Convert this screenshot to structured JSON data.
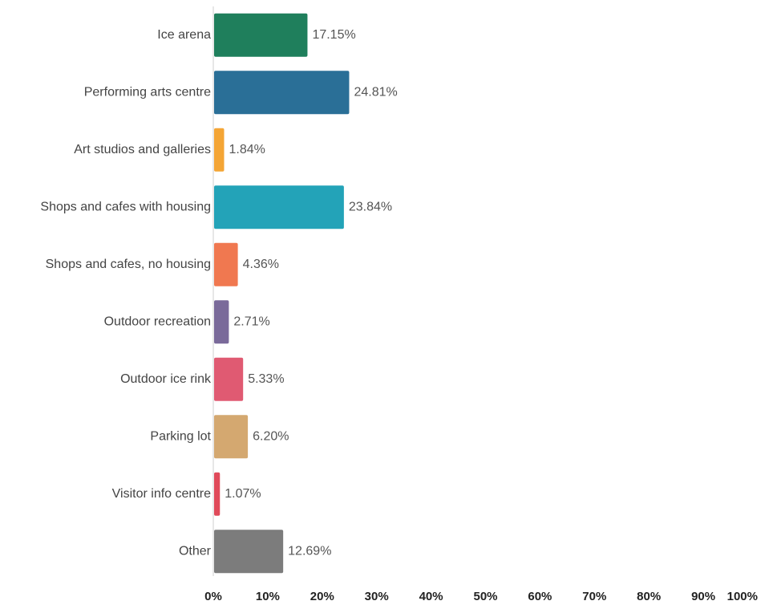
{
  "chart_data": {
    "type": "bar",
    "orientation": "horizontal",
    "categories": [
      "Ice arena",
      "Performing arts centre",
      "Art studios and galleries",
      "Shops and cafes with housing",
      "Shops and cafes, no housing",
      "Outdoor recreation",
      "Outdoor ice rink",
      "Parking lot",
      "Visitor info centre",
      "Other"
    ],
    "values": [
      17.15,
      24.81,
      1.84,
      23.84,
      4.36,
      2.71,
      5.33,
      6.2,
      1.07,
      12.69
    ],
    "value_labels": [
      "17.15%",
      "24.81%",
      "1.84%",
      "23.84%",
      "4.36%",
      "2.71%",
      "5.33%",
      "6.20%",
      "1.07%",
      "12.69%"
    ],
    "colors": [
      "#1f7f5c",
      "#2a6f97",
      "#f4a535",
      "#23a3b8",
      "#f07850",
      "#7a6a9a",
      "#e05a72",
      "#d4a870",
      "#e04a5a",
      "#7c7c7c"
    ],
    "xlim": [
      0,
      100
    ],
    "x_ticks": [
      "0%",
      "10%",
      "20%",
      "30%",
      "40%",
      "50%",
      "60%",
      "70%",
      "80%",
      "90%",
      "100%"
    ],
    "grid": false,
    "legend": "none"
  }
}
